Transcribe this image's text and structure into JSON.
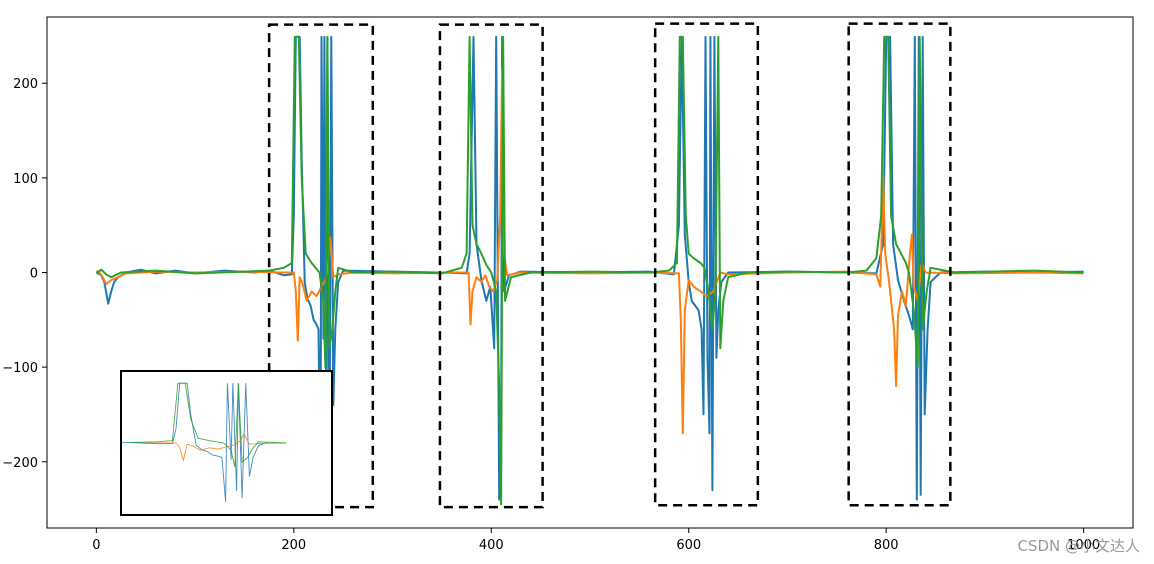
{
  "chart_data": {
    "type": "line",
    "title": "",
    "xlabel": "",
    "ylabel": "",
    "xlim": [
      -50,
      1050
    ],
    "ylim": [
      -270,
      270
    ],
    "x_ticks": [
      0,
      200,
      400,
      600,
      800,
      1000
    ],
    "x_tick_labels": [
      "0",
      "200",
      "400",
      "600",
      "800",
      "1000"
    ],
    "y_ticks": [
      -200,
      -100,
      0,
      100,
      200
    ],
    "y_tick_labels": [
      "−200",
      "−100",
      "0",
      "100",
      "200"
    ],
    "grid": false,
    "legend": "none",
    "series": [
      {
        "color": "#1f77b4",
        "points": [
          [
            0,
            0
          ],
          [
            5,
            -3
          ],
          [
            8,
            -10
          ],
          [
            12,
            -33
          ],
          [
            15,
            -20
          ],
          [
            18,
            -10
          ],
          [
            22,
            -5
          ],
          [
            30,
            0
          ],
          [
            45,
            3
          ],
          [
            60,
            -1
          ],
          [
            80,
            2
          ],
          [
            100,
            -1
          ],
          [
            130,
            2
          ],
          [
            160,
            0
          ],
          [
            175,
            2
          ],
          [
            190,
            -3
          ],
          [
            198,
            -2
          ],
          [
            200,
            60
          ],
          [
            202,
            249
          ],
          [
            206,
            249
          ],
          [
            208,
            120
          ],
          [
            211,
            -10
          ],
          [
            214,
            -28
          ],
          [
            217,
            -35
          ],
          [
            220,
            -50
          ],
          [
            223,
            -55
          ],
          [
            225,
            -60
          ],
          [
            227,
            -245
          ],
          [
            228,
            249
          ],
          [
            230,
            -70
          ],
          [
            231,
            249
          ],
          [
            233,
            -200
          ],
          [
            234,
            249
          ],
          [
            236,
            -230
          ],
          [
            238,
            249
          ],
          [
            240,
            -140
          ],
          [
            242,
            -60
          ],
          [
            245,
            -10
          ],
          [
            250,
            2
          ],
          [
            300,
            1
          ],
          [
            350,
            0
          ],
          [
            375,
            -1
          ],
          [
            378,
            20
          ],
          [
            382,
            249
          ],
          [
            385,
            30
          ],
          [
            390,
            -8
          ],
          [
            395,
            -30
          ],
          [
            399,
            -15
          ],
          [
            403,
            -80
          ],
          [
            405,
            249
          ],
          [
            408,
            -240
          ],
          [
            410,
            -200
          ],
          [
            411,
            249
          ],
          [
            413,
            -20
          ],
          [
            418,
            -3
          ],
          [
            430,
            1
          ],
          [
            500,
            0
          ],
          [
            560,
            1
          ],
          [
            585,
            -2
          ],
          [
            590,
            50
          ],
          [
            593,
            249
          ],
          [
            596,
            40
          ],
          [
            600,
            -10
          ],
          [
            603,
            -30
          ],
          [
            610,
            -40
          ],
          [
            613,
            -60
          ],
          [
            615,
            -150
          ],
          [
            617,
            249
          ],
          [
            619,
            -90
          ],
          [
            621,
            -170
          ],
          [
            622,
            249
          ],
          [
            624,
            -230
          ],
          [
            626,
            249
          ],
          [
            628,
            -90
          ],
          [
            630,
            -40
          ],
          [
            633,
            -10
          ],
          [
            640,
            0
          ],
          [
            700,
            1
          ],
          [
            760,
            0
          ],
          [
            790,
            -1
          ],
          [
            797,
            30
          ],
          [
            800,
            249
          ],
          [
            804,
            249
          ],
          [
            807,
            30
          ],
          [
            812,
            -8
          ],
          [
            818,
            -30
          ],
          [
            823,
            -45
          ],
          [
            827,
            -60
          ],
          [
            829,
            249
          ],
          [
            831,
            -240
          ],
          [
            833,
            249
          ],
          [
            835,
            -235
          ],
          [
            837,
            249
          ],
          [
            839,
            -150
          ],
          [
            842,
            -60
          ],
          [
            845,
            -10
          ],
          [
            855,
            0
          ],
          [
            900,
            1
          ],
          [
            950,
            0
          ],
          [
            1000,
            1
          ]
        ]
      },
      {
        "color": "#ff7f0e",
        "points": [
          [
            0,
            2
          ],
          [
            5,
            -2
          ],
          [
            10,
            -12
          ],
          [
            15,
            -8
          ],
          [
            22,
            -5
          ],
          [
            30,
            -1
          ],
          [
            60,
            1
          ],
          [
            100,
            0
          ],
          [
            150,
            1
          ],
          [
            185,
            0
          ],
          [
            200,
            0
          ],
          [
            202,
            -20
          ],
          [
            204,
            -72
          ],
          [
            206,
            -5
          ],
          [
            209,
            -12
          ],
          [
            213,
            -30
          ],
          [
            218,
            -20
          ],
          [
            223,
            -25
          ],
          [
            228,
            -15
          ],
          [
            232,
            -8
          ],
          [
            235,
            10
          ],
          [
            237,
            37
          ],
          [
            240,
            -5
          ],
          [
            245,
            -2
          ],
          [
            260,
            0
          ],
          [
            300,
            -1
          ],
          [
            350,
            0
          ],
          [
            377,
            0
          ],
          [
            379,
            -55
          ],
          [
            381,
            -20
          ],
          [
            385,
            -5
          ],
          [
            390,
            -10
          ],
          [
            394,
            -3
          ],
          [
            398,
            -15
          ],
          [
            402,
            -20
          ],
          [
            406,
            -8
          ],
          [
            409,
            60
          ],
          [
            411,
            215
          ],
          [
            413,
            20
          ],
          [
            416,
            -3
          ],
          [
            430,
            0
          ],
          [
            500,
            -1
          ],
          [
            560,
            0
          ],
          [
            590,
            -1
          ],
          [
            592,
            -50
          ],
          [
            594,
            -170
          ],
          [
            596,
            -40
          ],
          [
            600,
            -8
          ],
          [
            605,
            -15
          ],
          [
            612,
            -20
          ],
          [
            618,
            -25
          ],
          [
            625,
            -20
          ],
          [
            632,
            0
          ],
          [
            640,
            -2
          ],
          [
            700,
            0
          ],
          [
            760,
            1
          ],
          [
            790,
            -2
          ],
          [
            794,
            -15
          ],
          [
            797,
            103
          ],
          [
            799,
            20
          ],
          [
            803,
            -10
          ],
          [
            808,
            -60
          ],
          [
            810,
            -120
          ],
          [
            812,
            -45
          ],
          [
            816,
            -20
          ],
          [
            820,
            -35
          ],
          [
            824,
            20
          ],
          [
            826,
            40
          ],
          [
            828,
            -15
          ],
          [
            832,
            -30
          ],
          [
            836,
            10
          ],
          [
            840,
            0
          ],
          [
            870,
            -1
          ],
          [
            950,
            0
          ],
          [
            1000,
            -1
          ]
        ]
      },
      {
        "color": "#2ca02c",
        "points": [
          [
            0,
            -1
          ],
          [
            5,
            3
          ],
          [
            10,
            -2
          ],
          [
            15,
            -5
          ],
          [
            25,
            0
          ],
          [
            60,
            2
          ],
          [
            100,
            -1
          ],
          [
            150,
            1
          ],
          [
            175,
            2
          ],
          [
            190,
            5
          ],
          [
            198,
            10
          ],
          [
            201,
            249
          ],
          [
            205,
            249
          ],
          [
            208,
            100
          ],
          [
            212,
            20
          ],
          [
            218,
            10
          ],
          [
            222,
            5
          ],
          [
            226,
            0
          ],
          [
            230,
            -30
          ],
          [
            232,
            -100
          ],
          [
            234,
            249
          ],
          [
            236,
            -80
          ],
          [
            239,
            -60
          ],
          [
            242,
            -20
          ],
          [
            245,
            5
          ],
          [
            260,
            0
          ],
          [
            300,
            1
          ],
          [
            350,
            -1
          ],
          [
            370,
            5
          ],
          [
            375,
            20
          ],
          [
            378,
            249
          ],
          [
            381,
            50
          ],
          [
            385,
            30
          ],
          [
            390,
            20
          ],
          [
            395,
            8
          ],
          [
            400,
            0
          ],
          [
            405,
            -20
          ],
          [
            408,
            -120
          ],
          [
            410,
            -245
          ],
          [
            412,
            249
          ],
          [
            414,
            -30
          ],
          [
            420,
            -5
          ],
          [
            440,
            0
          ],
          [
            500,
            1
          ],
          [
            560,
            0
          ],
          [
            580,
            2
          ],
          [
            588,
            10
          ],
          [
            591,
            249
          ],
          [
            594,
            249
          ],
          [
            597,
            60
          ],
          [
            600,
            20
          ],
          [
            605,
            15
          ],
          [
            612,
            10
          ],
          [
            616,
            5
          ],
          [
            620,
            -20
          ],
          [
            624,
            -60
          ],
          [
            627,
            -20
          ],
          [
            630,
            249
          ],
          [
            632,
            -80
          ],
          [
            635,
            -30
          ],
          [
            640,
            -5
          ],
          [
            660,
            0
          ],
          [
            700,
            1
          ],
          [
            760,
            0
          ],
          [
            780,
            2
          ],
          [
            790,
            15
          ],
          [
            795,
            60
          ],
          [
            798,
            249
          ],
          [
            802,
            249
          ],
          [
            805,
            60
          ],
          [
            810,
            30
          ],
          [
            815,
            20
          ],
          [
            820,
            10
          ],
          [
            823,
            0
          ],
          [
            828,
            -40
          ],
          [
            832,
            -100
          ],
          [
            834,
            249
          ],
          [
            837,
            -60
          ],
          [
            841,
            -20
          ],
          [
            845,
            5
          ],
          [
            870,
            0
          ],
          [
            950,
            2
          ],
          [
            1000,
            0
          ]
        ]
      }
    ],
    "highlight_boxes": [
      [
        175,
        280,
        -248,
        262
      ],
      [
        348,
        452,
        -248,
        262
      ],
      [
        566,
        670,
        -246,
        263
      ],
      [
        762,
        865,
        -246,
        263
      ]
    ],
    "inset_xlim": [
      170,
      285
    ],
    "inset_ylim": [
      -300,
      300
    ]
  },
  "watermark": "CSDN @小文达人"
}
